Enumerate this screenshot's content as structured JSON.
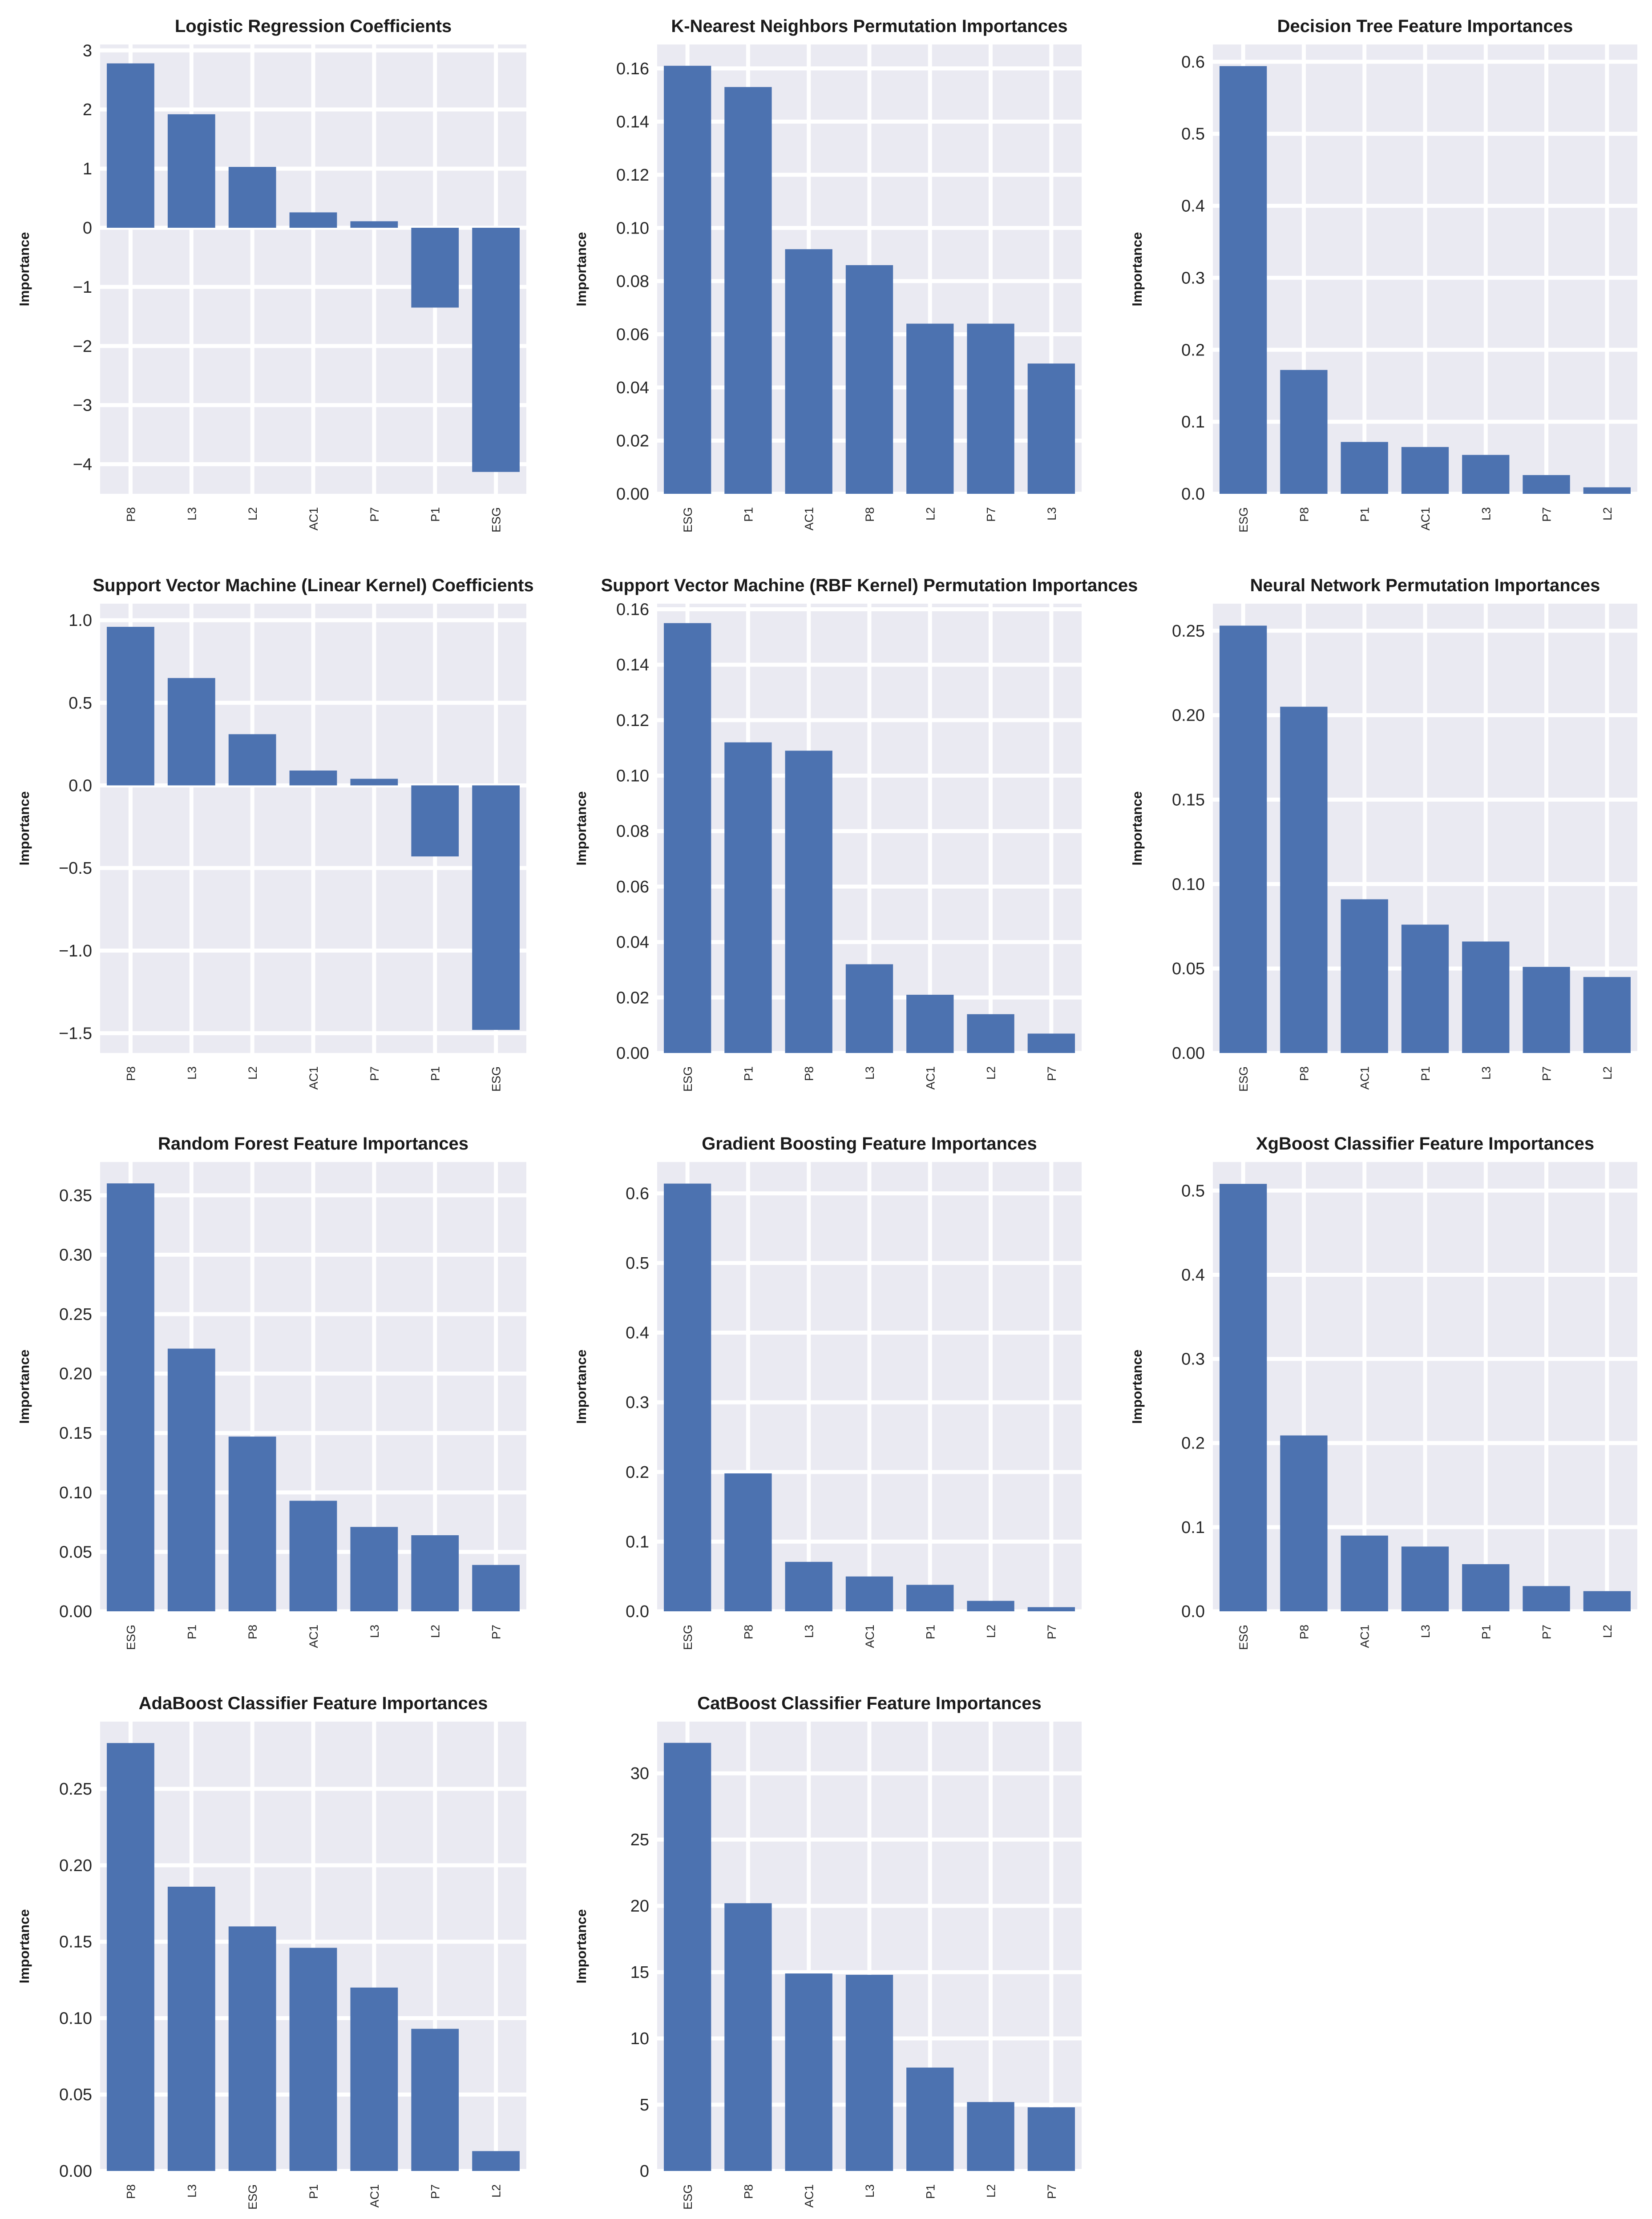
{
  "chart_data": [
    {
      "type": "bar",
      "title": "Logistic Regression Coefficients",
      "ylabel": "Importance",
      "categories": [
        "P8",
        "L3",
        "L2",
        "AC1",
        "P7",
        "P1",
        "ESG"
      ],
      "values": [
        2.78,
        1.92,
        1.03,
        0.26,
        0.11,
        -1.35,
        -4.13
      ],
      "ylim": [
        -4.5,
        3.1
      ],
      "yticks": [
        3,
        2,
        1,
        0,
        -1,
        -2,
        -3,
        -4
      ],
      "ytick_labels": [
        "3",
        "2",
        "1",
        "0",
        "−1",
        "−2",
        "−3",
        "−4"
      ],
      "grid": true,
      "bar_color": "#4c72b0"
    },
    {
      "type": "bar",
      "title": "K-Nearest Neighbors Permutation Importances",
      "ylabel": "Importance",
      "categories": [
        "ESG",
        "P1",
        "AC1",
        "P8",
        "L2",
        "P7",
        "L3"
      ],
      "values": [
        0.161,
        0.153,
        0.092,
        0.086,
        0.064,
        0.064,
        0.049
      ],
      "ylim": [
        0,
        0.169
      ],
      "yticks": [
        0,
        0.02,
        0.04,
        0.06,
        0.08,
        0.1,
        0.12,
        0.14,
        0.16
      ],
      "ytick_labels": [
        "0.00",
        "0.02",
        "0.04",
        "0.06",
        "0.08",
        "0.10",
        "0.12",
        "0.14",
        "0.16"
      ],
      "grid": true,
      "bar_color": "#4c72b0"
    },
    {
      "type": "bar",
      "title": "Decision Tree Feature Importances",
      "ylabel": "Importance",
      "categories": [
        "ESG",
        "P8",
        "P1",
        "AC1",
        "L3",
        "P7",
        "L2"
      ],
      "values": [
        0.594,
        0.172,
        0.072,
        0.065,
        0.054,
        0.026,
        0.009
      ],
      "ylim": [
        0,
        0.624
      ],
      "yticks": [
        0,
        0.1,
        0.2,
        0.3,
        0.4,
        0.5,
        0.6
      ],
      "ytick_labels": [
        "0.0",
        "0.1",
        "0.2",
        "0.3",
        "0.4",
        "0.5",
        "0.6"
      ],
      "grid": true,
      "bar_color": "#4c72b0"
    },
    {
      "type": "bar",
      "title": "Support Vector Machine (Linear Kernel) Coefficients",
      "ylabel": "Importance",
      "categories": [
        "P8",
        "L3",
        "L2",
        "AC1",
        "P7",
        "P1",
        "ESG"
      ],
      "values": [
        0.96,
        0.65,
        0.31,
        0.09,
        0.04,
        -0.43,
        -1.48
      ],
      "ylim": [
        -1.62,
        1.1
      ],
      "yticks": [
        1.0,
        0.5,
        0,
        -0.5,
        -1.0,
        -1.5
      ],
      "ytick_labels": [
        "1.0",
        "0.5",
        "0.0",
        "−0.5",
        "−1.0",
        "−1.5"
      ],
      "grid": true,
      "bar_color": "#4c72b0"
    },
    {
      "type": "bar",
      "title": "Support Vector Machine (RBF Kernel) Permutation Importances",
      "ylabel": "Importance",
      "categories": [
        "ESG",
        "P1",
        "P8",
        "L3",
        "AC1",
        "L2",
        "P7"
      ],
      "values": [
        0.155,
        0.112,
        0.109,
        0.032,
        0.021,
        0.014,
        0.007
      ],
      "ylim": [
        0,
        0.162
      ],
      "yticks": [
        0,
        0.02,
        0.04,
        0.06,
        0.08,
        0.1,
        0.12,
        0.14,
        0.16
      ],
      "ytick_labels": [
        "0.00",
        "0.02",
        "0.04",
        "0.06",
        "0.08",
        "0.10",
        "0.12",
        "0.14",
        "0.16"
      ],
      "grid": true,
      "bar_color": "#4c72b0"
    },
    {
      "type": "bar",
      "title": "Neural Network Permutation Importances",
      "ylabel": "Importance",
      "categories": [
        "ESG",
        "P8",
        "AC1",
        "P1",
        "L3",
        "P7",
        "L2"
      ],
      "values": [
        0.253,
        0.205,
        0.091,
        0.076,
        0.066,
        0.051,
        0.045
      ],
      "ylim": [
        0,
        0.266
      ],
      "yticks": [
        0,
        0.05,
        0.1,
        0.15,
        0.2,
        0.25
      ],
      "ytick_labels": [
        "0.00",
        "0.05",
        "0.10",
        "0.15",
        "0.20",
        "0.25"
      ],
      "grid": true,
      "bar_color": "#4c72b0"
    },
    {
      "type": "bar",
      "title": "Random Forest Feature Importances",
      "ylabel": "Importance",
      "categories": [
        "ESG",
        "P1",
        "P8",
        "AC1",
        "L3",
        "L2",
        "P7"
      ],
      "values": [
        0.36,
        0.221,
        0.147,
        0.093,
        0.071,
        0.064,
        0.039
      ],
      "ylim": [
        0,
        0.378
      ],
      "yticks": [
        0,
        0.05,
        0.1,
        0.15,
        0.2,
        0.25,
        0.3,
        0.35
      ],
      "ytick_labels": [
        "0.00",
        "0.05",
        "0.10",
        "0.15",
        "0.20",
        "0.25",
        "0.30",
        "0.35"
      ],
      "grid": true,
      "bar_color": "#4c72b0"
    },
    {
      "type": "bar",
      "title": "Gradient Boosting Feature Importances",
      "ylabel": "Importance",
      "categories": [
        "ESG",
        "P8",
        "L3",
        "AC1",
        "P1",
        "L2",
        "P7"
      ],
      "values": [
        0.614,
        0.198,
        0.071,
        0.05,
        0.038,
        0.015,
        0.006
      ],
      "ylim": [
        0,
        0.645
      ],
      "yticks": [
        0,
        0.1,
        0.2,
        0.3,
        0.4,
        0.5,
        0.6
      ],
      "ytick_labels": [
        "0.0",
        "0.1",
        "0.2",
        "0.3",
        "0.4",
        "0.5",
        "0.6"
      ],
      "grid": true,
      "bar_color": "#4c72b0"
    },
    {
      "type": "bar",
      "title": "XgBoost Classifier Feature Importances",
      "ylabel": "Importance",
      "categories": [
        "ESG",
        "P8",
        "AC1",
        "L3",
        "P1",
        "P7",
        "L2"
      ],
      "values": [
        0.508,
        0.209,
        0.09,
        0.077,
        0.056,
        0.03,
        0.024
      ],
      "ylim": [
        0,
        0.534
      ],
      "yticks": [
        0,
        0.1,
        0.2,
        0.3,
        0.4,
        0.5
      ],
      "ytick_labels": [
        "0.0",
        "0.1",
        "0.2",
        "0.3",
        "0.4",
        "0.5"
      ],
      "grid": true,
      "bar_color": "#4c72b0"
    },
    {
      "type": "bar",
      "title": "AdaBoost Classifier Feature Importances",
      "ylabel": "Importance",
      "categories": [
        "P8",
        "L3",
        "ESG",
        "P1",
        "AC1",
        "P7",
        "L2"
      ],
      "values": [
        0.28,
        0.186,
        0.16,
        0.146,
        0.12,
        0.093,
        0.013
      ],
      "ylim": [
        0,
        0.294
      ],
      "yticks": [
        0,
        0.05,
        0.1,
        0.15,
        0.2,
        0.25
      ],
      "ytick_labels": [
        "0.00",
        "0.05",
        "0.10",
        "0.15",
        "0.20",
        "0.25"
      ],
      "grid": true,
      "bar_color": "#4c72b0"
    },
    {
      "type": "bar",
      "title": "CatBoost Classifier Feature Importances",
      "ylabel": "Importance",
      "categories": [
        "ESG",
        "P8",
        "AC1",
        "L3",
        "P1",
        "L2",
        "P7"
      ],
      "values": [
        32.3,
        20.2,
        14.9,
        14.8,
        7.8,
        5.2,
        4.8
      ],
      "ylim": [
        0,
        33.9
      ],
      "yticks": [
        0,
        5,
        10,
        15,
        20,
        25,
        30
      ],
      "ytick_labels": [
        "0",
        "5",
        "10",
        "15",
        "20",
        "25",
        "30"
      ],
      "grid": true,
      "bar_color": "#4c72b0"
    }
  ]
}
